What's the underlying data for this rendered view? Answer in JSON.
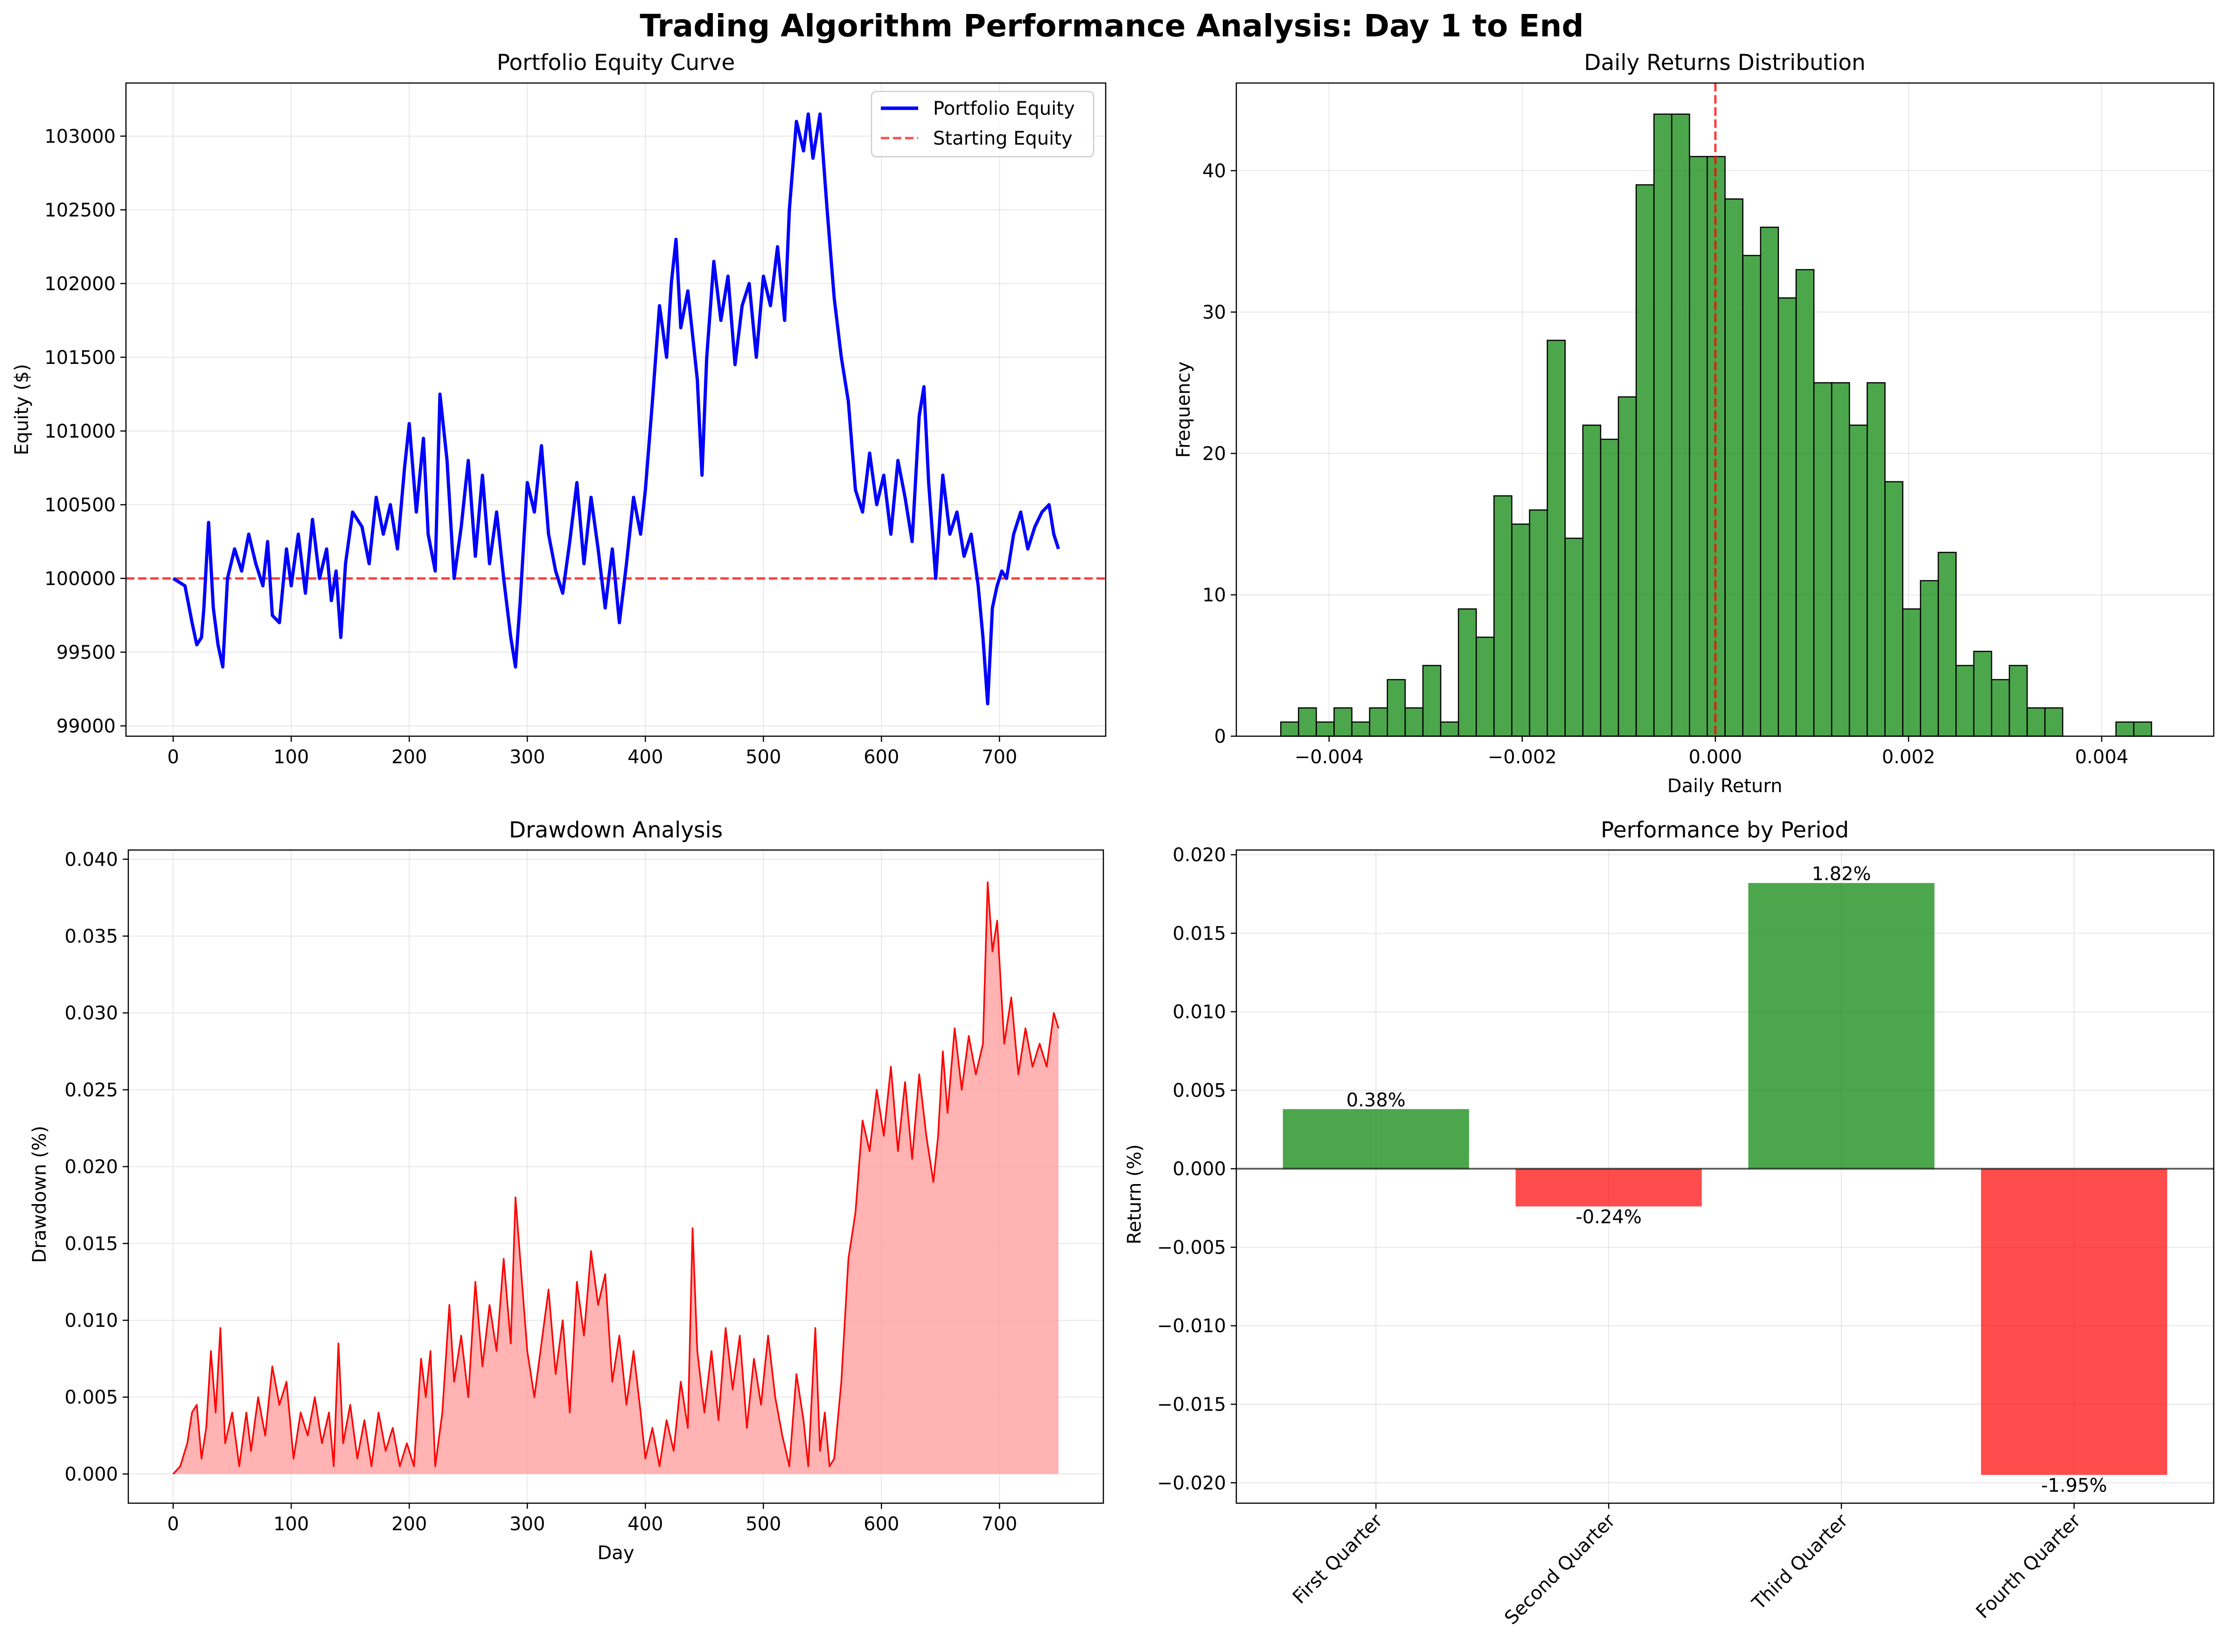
{
  "figure": {
    "title": "Trading Algorithm Performance Analysis: Day 1 to End"
  },
  "colors": {
    "equity_line": "#0000ff",
    "starting_line": "#ff0000",
    "hist_fill": "#008000",
    "drawdown_line": "#ff0000",
    "drawdown_fill": "#ff9999",
    "bar_positive": "#008000",
    "bar_negative": "#ff0000"
  },
  "chart_data": [
    {
      "id": "equity",
      "type": "line",
      "title": "Portfolio Equity Curve",
      "xlabel": "",
      "ylabel": "Equity ($)",
      "xlim": [
        -40,
        790
      ],
      "ylim": [
        98930,
        103360
      ],
      "xticks": [
        0,
        100,
        200,
        300,
        400,
        500,
        600,
        700
      ],
      "yticks": [
        99000,
        99500,
        100000,
        100500,
        101000,
        101500,
        102000,
        102500,
        103000
      ],
      "grid": true,
      "legend_placement": "top-right",
      "series": [
        {
          "name": "Portfolio Equity",
          "style": "solid",
          "x": [
            0,
            10,
            16,
            20,
            24,
            26,
            30,
            34,
            38,
            42,
            46,
            52,
            58,
            64,
            70,
            76,
            80,
            84,
            90,
            96,
            100,
            106,
            112,
            118,
            124,
            130,
            134,
            138,
            142,
            146,
            152,
            160,
            166,
            172,
            178,
            184,
            190,
            196,
            200,
            206,
            212,
            216,
            222,
            226,
            232,
            238,
            244,
            250,
            256,
            262,
            268,
            274,
            280,
            286,
            290,
            294,
            300,
            306,
            312,
            318,
            324,
            330,
            336,
            342,
            348,
            354,
            360,
            366,
            372,
            378,
            384,
            390,
            396,
            400,
            406,
            412,
            418,
            422,
            426,
            430,
            436,
            440,
            444,
            448,
            452,
            458,
            464,
            470,
            476,
            482,
            488,
            494,
            500,
            506,
            512,
            518,
            522,
            528,
            534,
            538,
            542,
            548,
            554,
            560,
            566,
            572,
            578,
            584,
            590,
            596,
            602,
            608,
            614,
            620,
            626,
            632,
            636,
            640,
            646,
            652,
            658,
            664,
            670,
            676,
            682,
            686,
            690,
            694,
            698,
            702,
            706,
            712,
            718,
            724,
            730,
            736,
            742,
            746,
            750
          ],
          "y": [
            100000,
            99950,
            99700,
            99550,
            99600,
            99800,
            100380,
            99800,
            99550,
            99400,
            100000,
            100200,
            100050,
            100300,
            100100,
            99950,
            100250,
            99750,
            99700,
            100200,
            99950,
            100300,
            99900,
            100400,
            100000,
            100200,
            99850,
            100050,
            99600,
            100100,
            100450,
            100350,
            100100,
            100550,
            100300,
            100500,
            100200,
            100750,
            101050,
            100450,
            100950,
            100300,
            100050,
            101250,
            100800,
            100000,
            100350,
            100800,
            100150,
            100700,
            100100,
            100450,
            100000,
            99600,
            99400,
            99850,
            100650,
            100450,
            100900,
            100300,
            100050,
            99900,
            100250,
            100650,
            100100,
            100550,
            100200,
            99800,
            100200,
            99700,
            100100,
            100550,
            100300,
            100600,
            101200,
            101850,
            101500,
            102000,
            102300,
            101700,
            101950,
            101650,
            101350,
            100700,
            101500,
            102150,
            101750,
            102050,
            101450,
            101850,
            102000,
            101500,
            102050,
            101850,
            102250,
            101750,
            102500,
            103100,
            102900,
            103150,
            102850,
            103150,
            102500,
            101900,
            101500,
            101200,
            100600,
            100450,
            100850,
            100500,
            100700,
            100300,
            100800,
            100550,
            100250,
            101100,
            101300,
            100650,
            100000,
            100700,
            100300,
            100450,
            100150,
            100300,
            99950,
            99600,
            99150,
            99800,
            99950,
            100050,
            100000,
            100300,
            100450,
            100200,
            100350,
            100450,
            100500,
            100300,
            100200
          ]
        },
        {
          "name": "Starting Equity",
          "style": "dashed",
          "y": 100000
        }
      ]
    },
    {
      "id": "returns-hist",
      "type": "histogram",
      "title": "Daily Returns Distribution",
      "xlabel": "Daily Return",
      "ylabel": "Frequency",
      "xlim": [
        -0.00496,
        0.00516
      ],
      "ylim": [
        0,
        46.2
      ],
      "xticks": [
        -0.004,
        -0.002,
        0.0,
        0.002,
        0.004
      ],
      "xtick_labels": [
        "−0.004",
        "−0.002",
        "0.000",
        "0.002",
        "0.004"
      ],
      "yticks": [
        0,
        10,
        20,
        30,
        40
      ],
      "grid": true,
      "bin_start": -0.0045,
      "bin_width": 0.000184,
      "counts": [
        1,
        2,
        1,
        2,
        1,
        2,
        4,
        2,
        5,
        1,
        9,
        7,
        17,
        15,
        16,
        28,
        14,
        22,
        21,
        24,
        39,
        44,
        44,
        41,
        41,
        38,
        34,
        36,
        31,
        33,
        25,
        25,
        22,
        25,
        18,
        9,
        11,
        13,
        5,
        6,
        4,
        5,
        2,
        2,
        0,
        0,
        0,
        1,
        1
      ],
      "vline": 0.0
    },
    {
      "id": "drawdown",
      "type": "area",
      "title": "Drawdown Analysis",
      "xlabel": "Day",
      "ylabel": "Drawdown (%)",
      "xlim": [
        -38,
        788
      ],
      "ylim": [
        -0.0019,
        0.0406
      ],
      "xticks": [
        0,
        100,
        200,
        300,
        400,
        500,
        600,
        700
      ],
      "yticks": [
        0.0,
        0.005,
        0.01,
        0.015,
        0.02,
        0.025,
        0.03,
        0.035,
        0.04
      ],
      "ytick_labels": [
        "0.000",
        "0.005",
        "0.010",
        "0.015",
        "0.020",
        "0.025",
        "0.030",
        "0.035",
        "0.040"
      ],
      "grid": true,
      "x": [
        0,
        6,
        12,
        16,
        20,
        24,
        28,
        32,
        36,
        40,
        44,
        50,
        56,
        62,
        66,
        72,
        78,
        84,
        90,
        96,
        102,
        108,
        114,
        120,
        126,
        132,
        136,
        140,
        144,
        150,
        156,
        162,
        168,
        174,
        180,
        186,
        192,
        198,
        204,
        210,
        214,
        218,
        222,
        228,
        234,
        238,
        244,
        250,
        256,
        262,
        268,
        274,
        280,
        286,
        290,
        294,
        300,
        306,
        312,
        318,
        324,
        330,
        336,
        342,
        348,
        354,
        360,
        366,
        372,
        378,
        384,
        390,
        396,
        400,
        406,
        412,
        418,
        424,
        430,
        436,
        440,
        444,
        450,
        456,
        462,
        468,
        474,
        480,
        486,
        492,
        498,
        504,
        510,
        516,
        522,
        528,
        534,
        538,
        544,
        548,
        552,
        556,
        560,
        566,
        572,
        578,
        584,
        590,
        596,
        602,
        608,
        614,
        620,
        626,
        632,
        638,
        644,
        648,
        652,
        656,
        662,
        668,
        674,
        680,
        686,
        690,
        694,
        698,
        704,
        710,
        716,
        722,
        728,
        734,
        740,
        746,
        750
      ],
      "y": [
        0.0,
        0.0005,
        0.002,
        0.004,
        0.0045,
        0.001,
        0.003,
        0.008,
        0.004,
        0.0095,
        0.002,
        0.004,
        0.0005,
        0.004,
        0.0015,
        0.005,
        0.0025,
        0.007,
        0.0045,
        0.006,
        0.001,
        0.004,
        0.0025,
        0.005,
        0.002,
        0.004,
        0.0005,
        0.0085,
        0.002,
        0.0045,
        0.001,
        0.0035,
        0.0005,
        0.004,
        0.0015,
        0.003,
        0.0005,
        0.002,
        0.0005,
        0.0075,
        0.005,
        0.008,
        0.0005,
        0.004,
        0.011,
        0.006,
        0.009,
        0.005,
        0.0125,
        0.007,
        0.011,
        0.008,
        0.014,
        0.0085,
        0.018,
        0.014,
        0.008,
        0.005,
        0.0085,
        0.012,
        0.0065,
        0.01,
        0.004,
        0.0125,
        0.009,
        0.0145,
        0.011,
        0.013,
        0.006,
        0.009,
        0.0045,
        0.008,
        0.004,
        0.001,
        0.003,
        0.0005,
        0.0035,
        0.0015,
        0.006,
        0.003,
        0.016,
        0.008,
        0.004,
        0.008,
        0.0035,
        0.0095,
        0.0055,
        0.009,
        0.003,
        0.0075,
        0.0045,
        0.009,
        0.005,
        0.0025,
        0.0005,
        0.0065,
        0.0035,
        0.0005,
        0.0095,
        0.0015,
        0.004,
        0.0005,
        0.001,
        0.006,
        0.014,
        0.017,
        0.023,
        0.021,
        0.025,
        0.022,
        0.0265,
        0.021,
        0.0255,
        0.0205,
        0.026,
        0.022,
        0.019,
        0.022,
        0.0275,
        0.0235,
        0.029,
        0.025,
        0.0285,
        0.026,
        0.028,
        0.0385,
        0.034,
        0.036,
        0.028,
        0.031,
        0.026,
        0.029,
        0.0265,
        0.028,
        0.0265,
        0.03,
        0.029
      ]
    },
    {
      "id": "period-bars",
      "type": "bar",
      "title": "Performance by Period",
      "xlabel": "",
      "ylabel": "Return (%)",
      "ylim": [
        -0.0213,
        0.0203
      ],
      "yticks": [
        -0.02,
        -0.015,
        -0.01,
        -0.005,
        0.0,
        0.005,
        0.01,
        0.015,
        0.02
      ],
      "ytick_labels": [
        "−0.020",
        "−0.015",
        "−0.010",
        "−0.005",
        "0.000",
        "0.005",
        "0.010",
        "0.015",
        "0.020"
      ],
      "grid": true,
      "categories": [
        "First Quarter",
        "Second Quarter",
        "Third Quarter",
        "Fourth Quarter"
      ],
      "values": [
        0.0038,
        -0.0024,
        0.0182,
        -0.0195
      ],
      "labels": [
        "0.38%",
        "-0.24%",
        "1.82%",
        "-1.95%"
      ]
    }
  ]
}
